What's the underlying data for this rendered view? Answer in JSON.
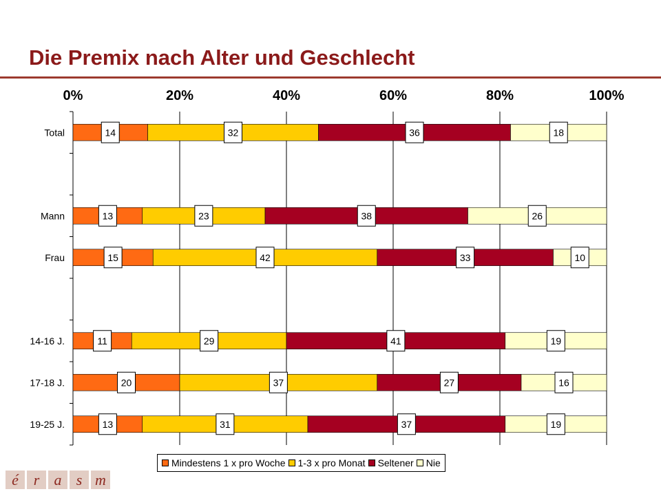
{
  "title": "Die Premix nach Alter und Geschlecht",
  "colors": {
    "title": "#8b1a1a",
    "rule": "#9c3a2e",
    "series": [
      "#ff6a13",
      "#ffcc00",
      "#a50021",
      "#ffffcc"
    ]
  },
  "logo": {
    "letters": [
      "é",
      "r",
      "a",
      "s",
      "m"
    ]
  },
  "chart_data": {
    "type": "bar",
    "orientation": "horizontal",
    "stacked": "percent",
    "title": "Die Premix nach Alter und Geschlecht",
    "xlabel": "",
    "ylabel": "",
    "xlim": [
      0,
      100
    ],
    "x_ticks": [
      "0%",
      "20%",
      "40%",
      "60%",
      "80%",
      "100%"
    ],
    "grid": true,
    "legend_position": "bottom",
    "categories": [
      "Total",
      "",
      "Mann",
      "Frau",
      "",
      "14-16 J.",
      "17-18 J.",
      "19-25 J."
    ],
    "series": [
      {
        "name": "Mindestens 1 x pro Woche",
        "values": [
          14,
          null,
          13,
          15,
          null,
          11,
          20,
          13
        ]
      },
      {
        "name": "1-3 x pro Monat",
        "values": [
          32,
          null,
          23,
          42,
          null,
          29,
          37,
          31
        ]
      },
      {
        "name": "Seltener",
        "values": [
          36,
          null,
          38,
          33,
          null,
          41,
          27,
          37
        ]
      },
      {
        "name": "Nie",
        "values": [
          18,
          null,
          26,
          10,
          null,
          19,
          16,
          19
        ]
      }
    ]
  }
}
